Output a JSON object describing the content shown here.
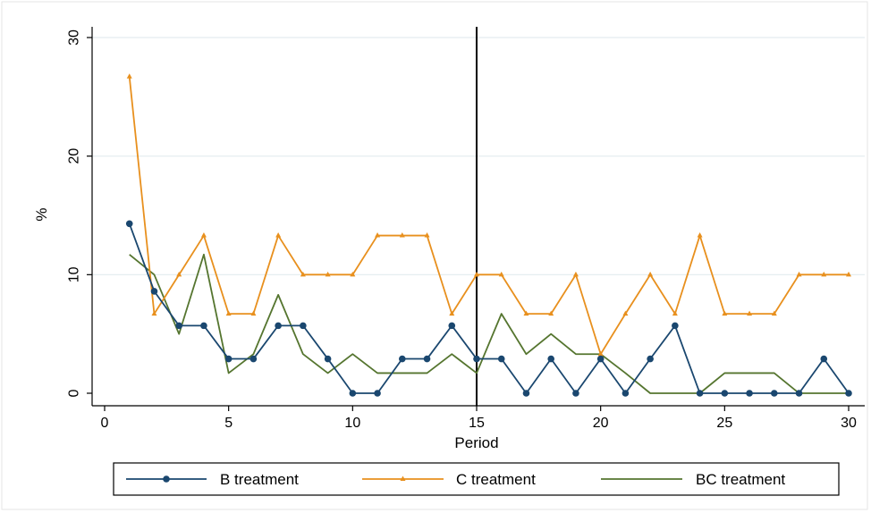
{
  "chart_data": {
    "type": "line",
    "xlabel": "Period",
    "ylabel": "%",
    "xlim": [
      0,
      30
    ],
    "ylim": [
      0,
      30
    ],
    "xticks": [
      0,
      5,
      10,
      15,
      20,
      25,
      30
    ],
    "yticks": [
      0,
      10,
      20,
      30
    ],
    "grid": "horizontal",
    "legend_position": "bottom",
    "reference_line_x": 15,
    "x": [
      1,
      2,
      3,
      4,
      5,
      6,
      7,
      8,
      9,
      10,
      11,
      12,
      13,
      14,
      15,
      16,
      17,
      18,
      19,
      20,
      21,
      22,
      23,
      24,
      25,
      26,
      27,
      28,
      29,
      30
    ],
    "series": [
      {
        "name": "B treatment",
        "color": "#1a476f",
        "marker": "circle",
        "values": [
          14.3,
          8.6,
          5.7,
          5.7,
          2.9,
          2.9,
          5.7,
          5.7,
          2.9,
          0,
          0,
          2.9,
          2.9,
          5.7,
          2.9,
          2.9,
          0,
          2.9,
          0,
          2.9,
          0,
          2.9,
          5.7,
          0,
          0,
          0,
          0,
          0,
          2.9,
          0
        ]
      },
      {
        "name": "C treatment",
        "color": "#e8901e",
        "marker": "triangle",
        "values": [
          26.7,
          6.7,
          10,
          13.3,
          6.7,
          6.7,
          13.3,
          10,
          10,
          10,
          13.3,
          13.3,
          13.3,
          6.7,
          10,
          10,
          6.7,
          6.7,
          10,
          3.3,
          6.7,
          10,
          6.7,
          13.3,
          6.7,
          6.7,
          6.7,
          10,
          10,
          10
        ]
      },
      {
        "name": "BC treatment",
        "color": "#55752f",
        "marker": "none",
        "values": [
          11.7,
          10,
          5,
          11.7,
          1.7,
          3.3,
          8.3,
          3.3,
          1.7,
          3.3,
          1.7,
          1.7,
          1.7,
          3.3,
          1.7,
          6.7,
          3.3,
          5,
          3.3,
          3.3,
          1.7,
          0,
          0,
          0,
          1.7,
          1.7,
          1.7,
          0,
          0,
          0
        ]
      }
    ]
  }
}
